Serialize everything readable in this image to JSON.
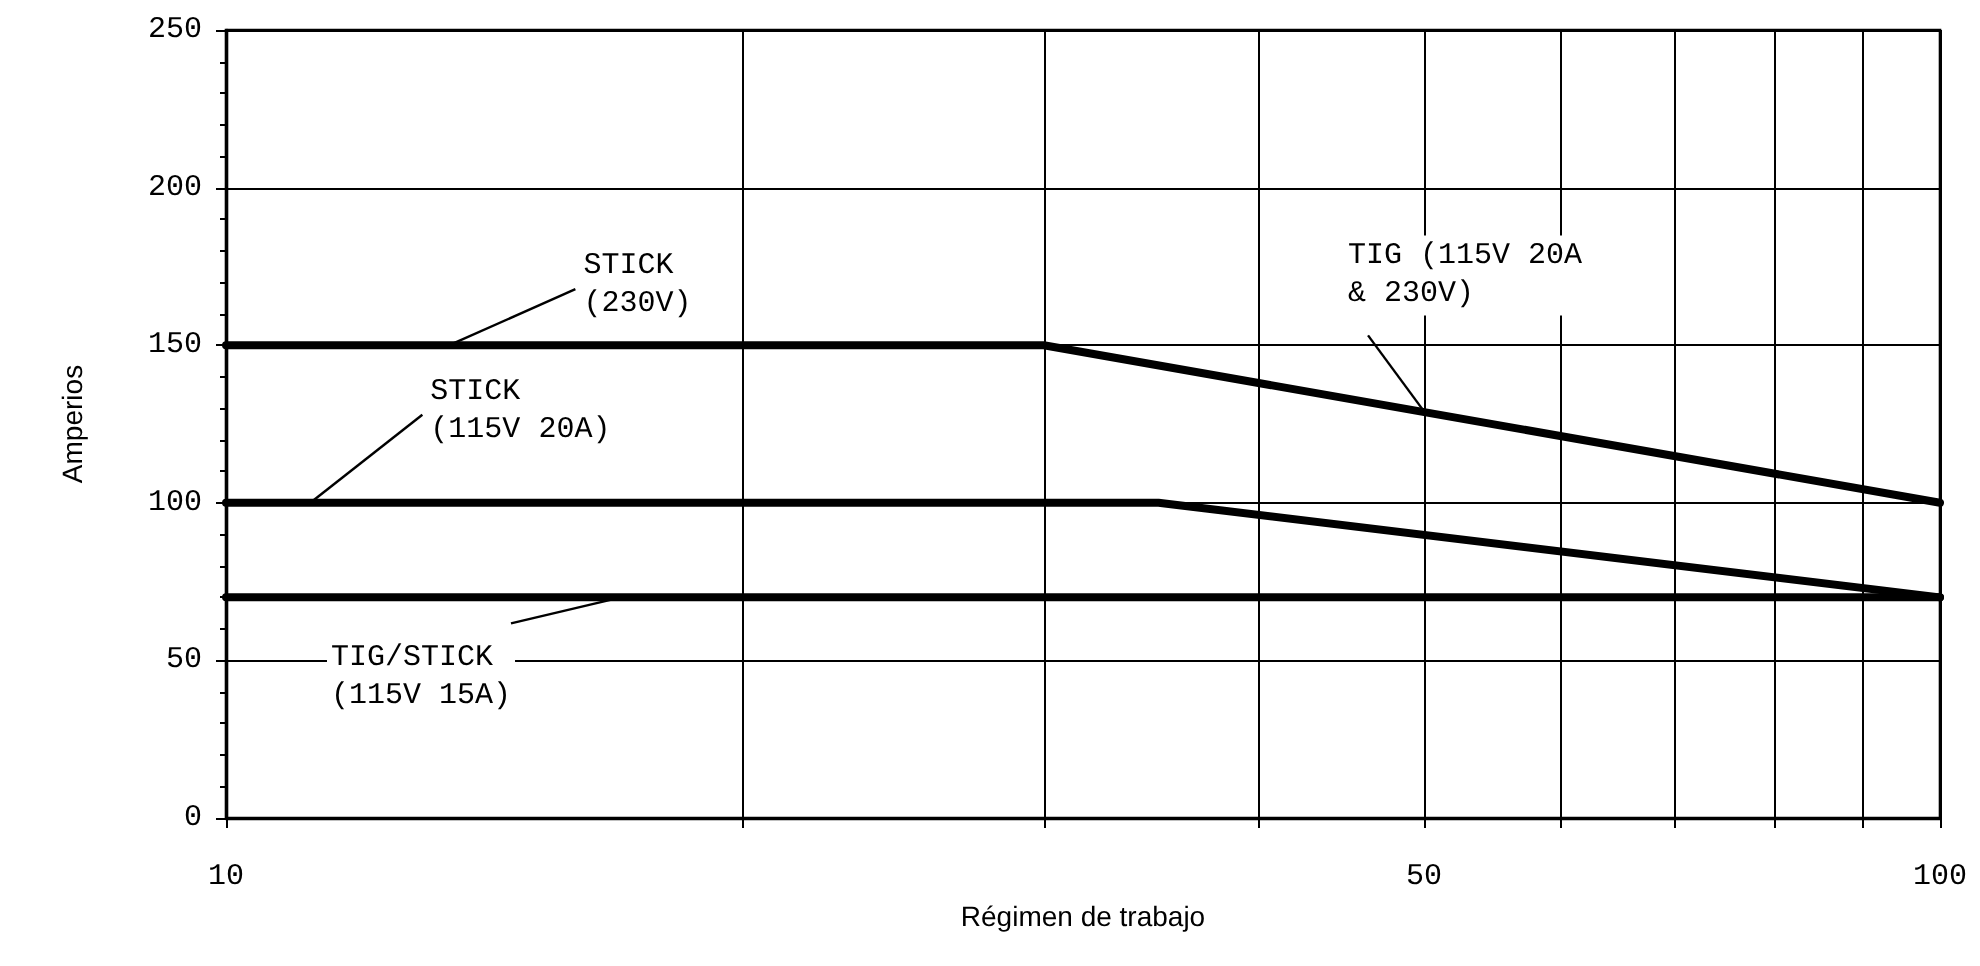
{
  "chart_data": {
    "type": "line",
    "xlabel": "Régimen de trabajo",
    "ylabel": "Amperios",
    "series": [
      {
        "color": "#000000",
        "x": [
          10,
          30,
          100
        ],
        "values": [
          150,
          150,
          100
        ]
      },
      {
        "color": "#000000",
        "x": [
          10,
          35,
          100
        ],
        "values": [
          100,
          100,
          70
        ]
      },
      {
        "color": "#000000",
        "x": [
          10,
          100
        ],
        "values": [
          70,
          70
        ]
      }
    ],
    "log": "x",
    "xlim": [
      10,
      100
    ],
    "xticks": [
      10,
      {
        "value": 20,
        "label": null
      },
      {
        "value": 30,
        "label": null
      },
      {
        "value": 40,
        "label": null
      },
      50,
      {
        "value": 60,
        "label": null
      },
      {
        "value": 70,
        "label": null
      },
      {
        "value": 80,
        "label": null
      },
      {
        "value": 90,
        "label": null
      },
      100
    ],
    "ylim": [
      0,
      250
    ],
    "yticks": [
      0,
      50,
      100,
      150,
      200,
      250
    ],
    "grid": true,
    "marker": "none",
    "line_style": "solid",
    "annotations": [
      {
        "text": "STICK\n(230V)",
        "x": 13.5,
        "y": 150
      },
      {
        "text": "STICK\n(115V 20A)",
        "x": 11.2,
        "y": 100
      },
      {
        "text": "TIG/STICK\n(115V 15A)",
        "x": 17,
        "y": 70
      },
      {
        "text": "TIG (115V 20A\n& 230V)",
        "x": 50,
        "y": 129
      }
    ]
  }
}
